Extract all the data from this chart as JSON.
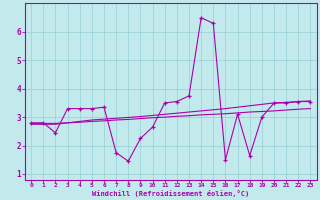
{
  "xlabel": "Windchill (Refroidissement éolien,°C)",
  "bg_color": "#c2eaed",
  "grid_color": "#9dd4d8",
  "line_color": "#aa00aa",
  "xlim": [
    -0.5,
    23.5
  ],
  "ylim": [
    0.8,
    7.0
  ],
  "xticks": [
    0,
    1,
    2,
    3,
    4,
    5,
    6,
    7,
    8,
    9,
    10,
    11,
    12,
    13,
    14,
    15,
    16,
    17,
    18,
    19,
    20,
    21,
    22,
    23
  ],
  "yticks": [
    1,
    2,
    3,
    4,
    5,
    6
  ],
  "s1_x": [
    0,
    1,
    2,
    3,
    4,
    5,
    6,
    7,
    8,
    9,
    10,
    11,
    12,
    13,
    14,
    15,
    16,
    17,
    18,
    19,
    20,
    21,
    22,
    23
  ],
  "s1_y": [
    2.8,
    2.8,
    2.45,
    3.3,
    3.3,
    3.3,
    3.35,
    1.75,
    1.45,
    2.25,
    2.65,
    3.5,
    3.55,
    3.75,
    6.5,
    6.3,
    1.5,
    3.1,
    1.65,
    3.0,
    3.5,
    3.5,
    3.55,
    3.55
  ],
  "s2_x": [
    0,
    1,
    2,
    3,
    4,
    5,
    6,
    7,
    8,
    9,
    10,
    11,
    12,
    13,
    14,
    15,
    16,
    17,
    18,
    19,
    20,
    21,
    22,
    23
  ],
  "s2_y": [
    2.75,
    2.75,
    2.75,
    2.8,
    2.82,
    2.85,
    2.87,
    2.9,
    2.92,
    2.95,
    2.98,
    3.0,
    3.03,
    3.05,
    3.08,
    3.1,
    3.12,
    3.15,
    3.18,
    3.2,
    3.22,
    3.25,
    3.28,
    3.3
  ],
  "s3_x": [
    0,
    1,
    2,
    3,
    4,
    5,
    6,
    7,
    8,
    9,
    10,
    11,
    12,
    13,
    14,
    15,
    16,
    17,
    18,
    19,
    20,
    21,
    22,
    23
  ],
  "s3_y": [
    2.78,
    2.78,
    2.78,
    2.8,
    2.85,
    2.9,
    2.93,
    2.96,
    2.99,
    3.02,
    3.06,
    3.1,
    3.14,
    3.18,
    3.22,
    3.26,
    3.3,
    3.35,
    3.4,
    3.45,
    3.5,
    3.52,
    3.55,
    3.57
  ]
}
